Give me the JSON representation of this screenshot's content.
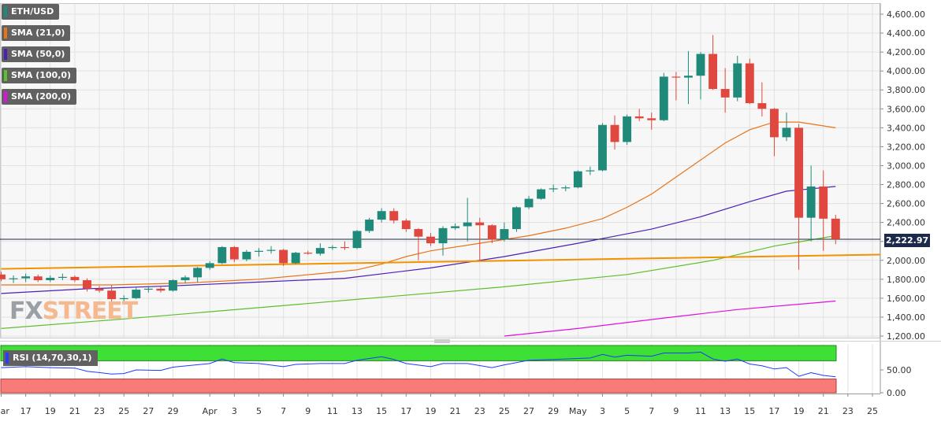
{
  "chart_data": {
    "type": "candlestick",
    "symbol": "ETH/USD",
    "price_axis": {
      "min": 1200,
      "max": 4600,
      "ticks": [
        1200,
        1400,
        1600,
        1800,
        2000,
        2200,
        2400,
        2600,
        2800,
        3000,
        3200,
        3400,
        3600,
        3800,
        4000,
        4200,
        4400,
        4600
      ],
      "tick_labels": [
        "1,200.00",
        "1,400.00",
        "1,600.00",
        "1,800.00",
        "2,000.00",
        "2,200.00",
        "2,400.00",
        "2,600.00",
        "2,800.00",
        "3,000.00",
        "3,200.00",
        "3,400.00",
        "3,600.00",
        "3,800.00",
        "4,000.00",
        "4,200.00",
        "4,400.00",
        "4,600.00"
      ]
    },
    "x_axis": {
      "start": "2021-03-15",
      "end": "2021-05-25",
      "ticks": [
        {
          "date": "2021-03-15",
          "label": "Mar"
        },
        {
          "date": "2021-03-17",
          "label": "17"
        },
        {
          "date": "2021-03-19",
          "label": "19"
        },
        {
          "date": "2021-03-21",
          "label": "21"
        },
        {
          "date": "2021-03-23",
          "label": "23"
        },
        {
          "date": "2021-03-25",
          "label": "25"
        },
        {
          "date": "2021-03-27",
          "label": "27"
        },
        {
          "date": "2021-03-29",
          "label": "29"
        },
        {
          "date": "2021-04-01",
          "label": "Apr"
        },
        {
          "date": "2021-04-03",
          "label": "3"
        },
        {
          "date": "2021-04-05",
          "label": "5"
        },
        {
          "date": "2021-04-07",
          "label": "7"
        },
        {
          "date": "2021-04-09",
          "label": "9"
        },
        {
          "date": "2021-04-11",
          "label": "11"
        },
        {
          "date": "2021-04-13",
          "label": "13"
        },
        {
          "date": "2021-04-15",
          "label": "15"
        },
        {
          "date": "2021-04-17",
          "label": "17"
        },
        {
          "date": "2021-04-19",
          "label": "19"
        },
        {
          "date": "2021-04-21",
          "label": "21"
        },
        {
          "date": "2021-04-23",
          "label": "23"
        },
        {
          "date": "2021-04-25",
          "label": "25"
        },
        {
          "date": "2021-04-27",
          "label": "27"
        },
        {
          "date": "2021-04-29",
          "label": "29"
        },
        {
          "date": "2021-05-01",
          "label": "May"
        },
        {
          "date": "2021-05-03",
          "label": "3"
        },
        {
          "date": "2021-05-05",
          "label": "5"
        },
        {
          "date": "2021-05-07",
          "label": "7"
        },
        {
          "date": "2021-05-09",
          "label": "9"
        },
        {
          "date": "2021-05-11",
          "label": "11"
        },
        {
          "date": "2021-05-13",
          "label": "13"
        },
        {
          "date": "2021-05-15",
          "label": "15"
        },
        {
          "date": "2021-05-17",
          "label": "17"
        },
        {
          "date": "2021-05-19",
          "label": "19"
        },
        {
          "date": "2021-05-21",
          "label": "21"
        },
        {
          "date": "2021-05-23",
          "label": "23"
        },
        {
          "date": "2021-05-25",
          "label": "25"
        }
      ]
    },
    "candles": [
      {
        "date": "2021-03-15",
        "o": 1850,
        "h": 1880,
        "l": 1780,
        "c": 1800
      },
      {
        "date": "2021-03-16",
        "o": 1800,
        "h": 1840,
        "l": 1760,
        "c": 1810
      },
      {
        "date": "2021-03-17",
        "o": 1810,
        "h": 1860,
        "l": 1770,
        "c": 1830
      },
      {
        "date": "2021-03-18",
        "o": 1830,
        "h": 1850,
        "l": 1770,
        "c": 1790
      },
      {
        "date": "2021-03-19",
        "o": 1790,
        "h": 1840,
        "l": 1770,
        "c": 1815
      },
      {
        "date": "2021-03-20",
        "o": 1815,
        "h": 1860,
        "l": 1790,
        "c": 1825
      },
      {
        "date": "2021-03-21",
        "o": 1825,
        "h": 1840,
        "l": 1770,
        "c": 1790
      },
      {
        "date": "2021-03-22",
        "o": 1790,
        "h": 1810,
        "l": 1670,
        "c": 1700
      },
      {
        "date": "2021-03-23",
        "o": 1700,
        "h": 1730,
        "l": 1660,
        "c": 1680
      },
      {
        "date": "2021-03-24",
        "o": 1680,
        "h": 1740,
        "l": 1560,
        "c": 1590
      },
      {
        "date": "2021-03-25",
        "o": 1590,
        "h": 1630,
        "l": 1550,
        "c": 1600
      },
      {
        "date": "2021-03-26",
        "o": 1600,
        "h": 1710,
        "l": 1590,
        "c": 1690
      },
      {
        "date": "2021-03-27",
        "o": 1690,
        "h": 1730,
        "l": 1660,
        "c": 1700
      },
      {
        "date": "2021-03-28",
        "o": 1700,
        "h": 1720,
        "l": 1660,
        "c": 1680
      },
      {
        "date": "2021-03-29",
        "o": 1680,
        "h": 1800,
        "l": 1670,
        "c": 1790
      },
      {
        "date": "2021-03-30",
        "o": 1790,
        "h": 1840,
        "l": 1760,
        "c": 1820
      },
      {
        "date": "2021-03-31",
        "o": 1820,
        "h": 1930,
        "l": 1770,
        "c": 1920
      },
      {
        "date": "2021-04-01",
        "o": 1920,
        "h": 1990,
        "l": 1900,
        "c": 1970
      },
      {
        "date": "2021-04-02",
        "o": 1970,
        "h": 2150,
        "l": 1960,
        "c": 2140
      },
      {
        "date": "2021-04-03",
        "o": 2140,
        "h": 2150,
        "l": 1980,
        "c": 2010
      },
      {
        "date": "2021-04-04",
        "o": 2010,
        "h": 2110,
        "l": 1990,
        "c": 2090
      },
      {
        "date": "2021-04-05",
        "o": 2090,
        "h": 2130,
        "l": 2040,
        "c": 2100
      },
      {
        "date": "2021-04-06",
        "o": 2100,
        "h": 2150,
        "l": 2070,
        "c": 2110
      },
      {
        "date": "2021-04-07",
        "o": 2110,
        "h": 2120,
        "l": 1940,
        "c": 1970
      },
      {
        "date": "2021-04-08",
        "o": 1970,
        "h": 2090,
        "l": 1960,
        "c": 2080
      },
      {
        "date": "2021-04-09",
        "o": 2080,
        "h": 2100,
        "l": 2060,
        "c": 2070
      },
      {
        "date": "2021-04-10",
        "o": 2070,
        "h": 2180,
        "l": 2050,
        "c": 2130
      },
      {
        "date": "2021-04-11",
        "o": 2130,
        "h": 2160,
        "l": 2110,
        "c": 2140
      },
      {
        "date": "2021-04-12",
        "o": 2140,
        "h": 2200,
        "l": 2110,
        "c": 2130
      },
      {
        "date": "2021-04-13",
        "o": 2130,
        "h": 2320,
        "l": 2120,
        "c": 2310
      },
      {
        "date": "2021-04-14",
        "o": 2310,
        "h": 2450,
        "l": 2290,
        "c": 2430
      },
      {
        "date": "2021-04-15",
        "o": 2430,
        "h": 2550,
        "l": 2400,
        "c": 2520
      },
      {
        "date": "2021-04-16",
        "o": 2520,
        "h": 2550,
        "l": 2390,
        "c": 2420
      },
      {
        "date": "2021-04-17",
        "o": 2420,
        "h": 2440,
        "l": 2300,
        "c": 2330
      },
      {
        "date": "2021-04-18",
        "o": 2330,
        "h": 2340,
        "l": 2000,
        "c": 2250
      },
      {
        "date": "2021-04-19",
        "o": 2250,
        "h": 2290,
        "l": 2150,
        "c": 2180
      },
      {
        "date": "2021-04-20",
        "o": 2180,
        "h": 2360,
        "l": 2050,
        "c": 2340
      },
      {
        "date": "2021-04-21",
        "o": 2340,
        "h": 2390,
        "l": 2320,
        "c": 2360
      },
      {
        "date": "2021-04-22",
        "o": 2360,
        "h": 2660,
        "l": 2200,
        "c": 2400
      },
      {
        "date": "2021-04-23",
        "o": 2400,
        "h": 2450,
        "l": 2000,
        "c": 2370
      },
      {
        "date": "2021-04-24",
        "o": 2370,
        "h": 2380,
        "l": 2180,
        "c": 2220
      },
      {
        "date": "2021-04-25",
        "o": 2220,
        "h": 2400,
        "l": 2200,
        "c": 2330
      },
      {
        "date": "2021-04-26",
        "o": 2330,
        "h": 2570,
        "l": 2300,
        "c": 2560
      },
      {
        "date": "2021-04-27",
        "o": 2560,
        "h": 2680,
        "l": 2540,
        "c": 2650
      },
      {
        "date": "2021-04-28",
        "o": 2650,
        "h": 2760,
        "l": 2640,
        "c": 2750
      },
      {
        "date": "2021-04-29",
        "o": 2750,
        "h": 2800,
        "l": 2720,
        "c": 2760
      },
      {
        "date": "2021-04-30",
        "o": 2760,
        "h": 2790,
        "l": 2730,
        "c": 2770
      },
      {
        "date": "2021-05-01",
        "o": 2770,
        "h": 2950,
        "l": 2760,
        "c": 2940
      },
      {
        "date": "2021-05-02",
        "o": 2940,
        "h": 2990,
        "l": 2900,
        "c": 2950
      },
      {
        "date": "2021-05-03",
        "o": 2950,
        "h": 3450,
        "l": 2940,
        "c": 3430
      },
      {
        "date": "2021-05-04",
        "o": 3430,
        "h": 3530,
        "l": 3170,
        "c": 3250
      },
      {
        "date": "2021-05-05",
        "o": 3250,
        "h": 3540,
        "l": 3220,
        "c": 3520
      },
      {
        "date": "2021-05-06",
        "o": 3520,
        "h": 3600,
        "l": 3470,
        "c": 3500
      },
      {
        "date": "2021-05-07",
        "o": 3500,
        "h": 3560,
        "l": 3380,
        "c": 3480
      },
      {
        "date": "2021-05-08",
        "o": 3480,
        "h": 3980,
        "l": 3470,
        "c": 3940
      },
      {
        "date": "2021-05-09",
        "o": 3940,
        "h": 3990,
        "l": 3690,
        "c": 3930
      },
      {
        "date": "2021-05-10",
        "o": 3930,
        "h": 4210,
        "l": 3650,
        "c": 3950
      },
      {
        "date": "2021-05-11",
        "o": 3950,
        "h": 4200,
        "l": 3700,
        "c": 4180
      },
      {
        "date": "2021-05-12",
        "o": 4180,
        "h": 4380,
        "l": 3800,
        "c": 3810
      },
      {
        "date": "2021-05-13",
        "o": 3810,
        "h": 4030,
        "l": 3560,
        "c": 3720
      },
      {
        "date": "2021-05-14",
        "o": 3720,
        "h": 4160,
        "l": 3680,
        "c": 4080
      },
      {
        "date": "2021-05-15",
        "o": 4080,
        "h": 4130,
        "l": 3650,
        "c": 3660
      },
      {
        "date": "2021-05-16",
        "o": 3660,
        "h": 3880,
        "l": 3520,
        "c": 3600
      },
      {
        "date": "2021-05-17",
        "o": 3600,
        "h": 3610,
        "l": 3100,
        "c": 3300
      },
      {
        "date": "2021-05-18",
        "o": 3300,
        "h": 3560,
        "l": 3260,
        "c": 3400
      },
      {
        "date": "2021-05-19",
        "o": 3400,
        "h": 3440,
        "l": 1900,
        "c": 2450
      },
      {
        "date": "2021-05-20",
        "o": 2450,
        "h": 3000,
        "l": 2200,
        "c": 2780
      },
      {
        "date": "2021-05-21",
        "o": 2780,
        "h": 2950,
        "l": 2100,
        "c": 2440
      },
      {
        "date": "2021-05-22",
        "o": 2440,
        "h": 2480,
        "l": 2170,
        "c": 2223
      }
    ],
    "series": [
      {
        "name": "SMA (21,0)",
        "color": "#e8731a",
        "points": [
          [
            "2021-03-15",
            1740
          ],
          [
            "2021-03-24",
            1740
          ],
          [
            "2021-03-30",
            1760
          ],
          [
            "2021-04-05",
            1800
          ],
          [
            "2021-04-10",
            1860
          ],
          [
            "2021-04-13",
            1900
          ],
          [
            "2021-04-15",
            1960
          ],
          [
            "2021-04-17",
            2040
          ],
          [
            "2021-04-19",
            2100
          ],
          [
            "2021-04-23",
            2180
          ],
          [
            "2021-04-27",
            2260
          ],
          [
            "2021-04-30",
            2340
          ],
          [
            "2021-05-03",
            2440
          ],
          [
            "2021-05-05",
            2560
          ],
          [
            "2021-05-07",
            2700
          ],
          [
            "2021-05-09",
            2880
          ],
          [
            "2021-05-11",
            3060
          ],
          [
            "2021-05-13",
            3240
          ],
          [
            "2021-05-15",
            3380
          ],
          [
            "2021-05-17",
            3460
          ],
          [
            "2021-05-19",
            3460
          ],
          [
            "2021-05-20",
            3440
          ],
          [
            "2021-05-22",
            3400
          ]
        ]
      },
      {
        "name": "SMA (50,0)",
        "color": "#4b1fb5",
        "points": [
          [
            "2021-03-15",
            1650
          ],
          [
            "2021-03-22",
            1700
          ],
          [
            "2021-03-29",
            1730
          ],
          [
            "2021-04-05",
            1770
          ],
          [
            "2021-04-12",
            1810
          ],
          [
            "2021-04-19",
            1920
          ],
          [
            "2021-04-25",
            2040
          ],
          [
            "2021-05-01",
            2180
          ],
          [
            "2021-05-07",
            2330
          ],
          [
            "2021-05-11",
            2460
          ],
          [
            "2021-05-15",
            2620
          ],
          [
            "2021-05-18",
            2730
          ],
          [
            "2021-05-22",
            2780
          ]
        ]
      },
      {
        "name": "SMA (100,0)",
        "color": "#5cbe2a",
        "points": [
          [
            "2021-03-15",
            1280
          ],
          [
            "2021-03-25",
            1380
          ],
          [
            "2021-04-05",
            1500
          ],
          [
            "2021-04-15",
            1610
          ],
          [
            "2021-04-25",
            1720
          ],
          [
            "2021-05-05",
            1850
          ],
          [
            "2021-05-12",
            2000
          ],
          [
            "2021-05-17",
            2150
          ],
          [
            "2021-05-22",
            2260
          ]
        ]
      },
      {
        "name": "SMA (200,0)",
        "color": "#e010e0",
        "points": [
          [
            "2021-04-25",
            1200
          ],
          [
            "2021-05-01",
            1280
          ],
          [
            "2021-05-08",
            1390
          ],
          [
            "2021-05-14",
            1480
          ],
          [
            "2021-05-22",
            1570
          ]
        ]
      }
    ],
    "trendline": {
      "color": "#f39200",
      "points": [
        [
          "2021-03-15",
          1910
        ],
        [
          "2021-05-25",
          2060
        ]
      ]
    },
    "last_price": 2222.97,
    "last_price_label": "2,222.97",
    "legend": [
      "ETH/USD",
      "SMA (21,0)",
      "SMA (50,0)",
      "SMA (100,0)",
      "SMA (200,0)"
    ],
    "legend_colors": [
      "#1f8a7a",
      "#e8731a",
      "#4b1fb5",
      "#5cbe2a",
      "#e010e0"
    ],
    "up_color": "#1f8a7a",
    "down_color": "#e0473e",
    "rsi": {
      "label": "RSI (14,70,30,1)",
      "overbought": 70,
      "oversold": 30,
      "max": 100,
      "min": 0,
      "tick_labels": [
        "50.00",
        "0.00"
      ],
      "points": [
        [
          "2021-03-15",
          55
        ],
        [
          "2021-03-17",
          57
        ],
        [
          "2021-03-19",
          55
        ],
        [
          "2021-03-21",
          54
        ],
        [
          "2021-03-22",
          47
        ],
        [
          "2021-03-24",
          41
        ],
        [
          "2021-03-25",
          42
        ],
        [
          "2021-03-26",
          50
        ],
        [
          "2021-03-28",
          49
        ],
        [
          "2021-03-29",
          56
        ],
        [
          "2021-04-01",
          64
        ],
        [
          "2021-04-02",
          74
        ],
        [
          "2021-04-03",
          66
        ],
        [
          "2021-04-05",
          64
        ],
        [
          "2021-04-07",
          57
        ],
        [
          "2021-04-08",
          62
        ],
        [
          "2021-04-10",
          64
        ],
        [
          "2021-04-12",
          64
        ],
        [
          "2021-04-13",
          71
        ],
        [
          "2021-04-15",
          79
        ],
        [
          "2021-04-16",
          73
        ],
        [
          "2021-04-17",
          64
        ],
        [
          "2021-04-19",
          57
        ],
        [
          "2021-04-20",
          64
        ],
        [
          "2021-04-22",
          64
        ],
        [
          "2021-04-24",
          55
        ],
        [
          "2021-04-25",
          61
        ],
        [
          "2021-04-27",
          71
        ],
        [
          "2021-04-29",
          73
        ],
        [
          "2021-05-01",
          75
        ],
        [
          "2021-05-02",
          76
        ],
        [
          "2021-05-03",
          84
        ],
        [
          "2021-05-04",
          78
        ],
        [
          "2021-05-05",
          82
        ],
        [
          "2021-05-07",
          80
        ],
        [
          "2021-05-08",
          87
        ],
        [
          "2021-05-10",
          87
        ],
        [
          "2021-05-11",
          89
        ],
        [
          "2021-05-12",
          74
        ],
        [
          "2021-05-13",
          69
        ],
        [
          "2021-05-14",
          74
        ],
        [
          "2021-05-15",
          63
        ],
        [
          "2021-05-16",
          59
        ],
        [
          "2021-05-17",
          52
        ],
        [
          "2021-05-18",
          55
        ],
        [
          "2021-05-19",
          36
        ],
        [
          "2021-05-20",
          44
        ],
        [
          "2021-05-21",
          38
        ],
        [
          "2021-05-22",
          35
        ]
      ]
    }
  },
  "branding": {
    "fx": "FX",
    "street": "STREET"
  }
}
